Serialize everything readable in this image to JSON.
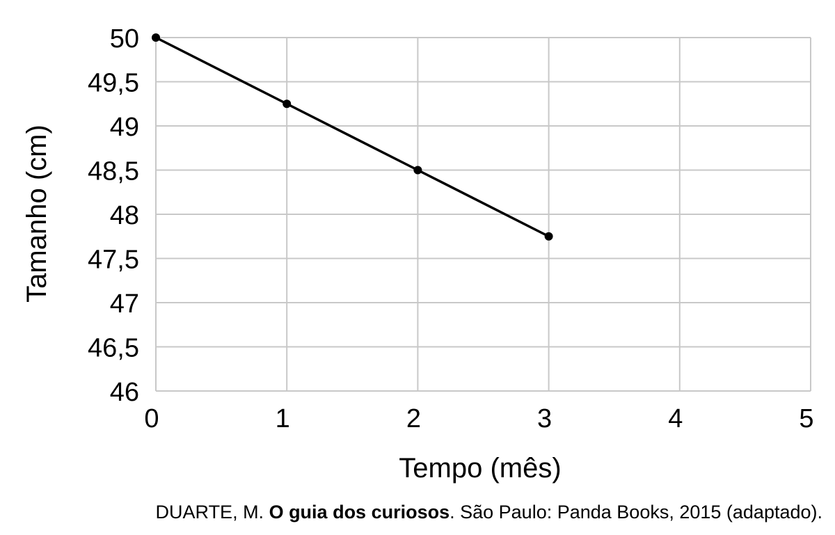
{
  "chart_data": {
    "type": "line",
    "title": "",
    "xlabel": "Tempo (mês)",
    "ylabel": "Tamanho (cm)",
    "x": [
      0,
      1,
      2,
      3
    ],
    "series": [
      {
        "values": [
          50,
          49.25,
          48.5,
          47.75
        ]
      }
    ],
    "xlim": [
      0,
      5
    ],
    "ylim": [
      46,
      50
    ],
    "x_ticks": [
      "0",
      "1",
      "2",
      "3",
      "4",
      "5"
    ],
    "y_ticks": [
      "46",
      "46,5",
      "47",
      "47,5",
      "48",
      "48,5",
      "49",
      "49,5",
      "50"
    ],
    "grid": true,
    "legend": "none",
    "line_color": "#000000",
    "grid_color": "#c8c8c8"
  },
  "caption": {
    "author": "DUARTE, M. ",
    "book_title": "O guia dos curiosos",
    "rest": ". São Paulo: Panda Books, 2015 (adaptado)."
  }
}
